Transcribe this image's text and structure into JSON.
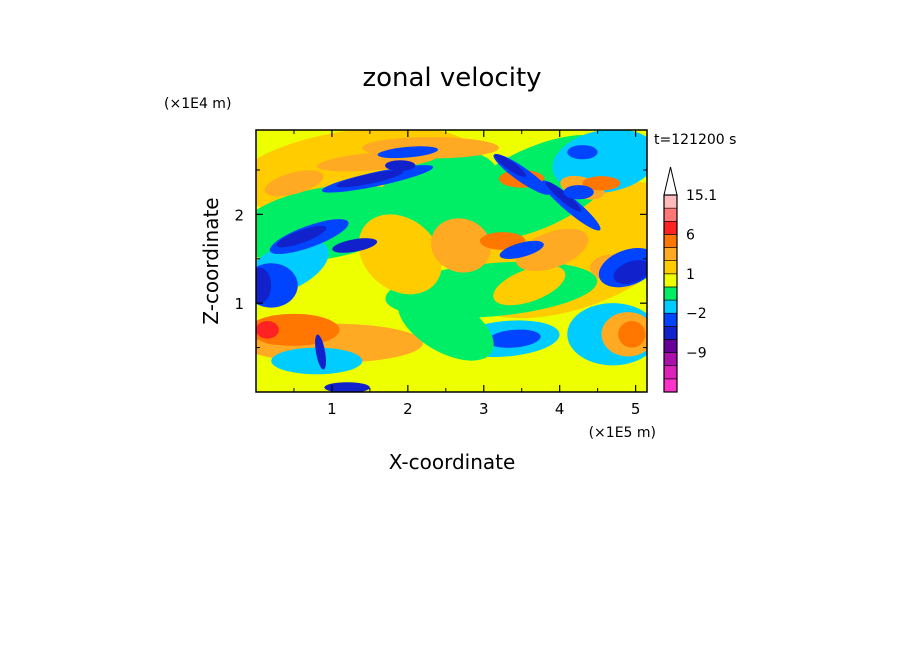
{
  "chart_data": {
    "type": "heatmap",
    "title": "zonal velocity",
    "xlabel": "X-coordinate",
    "ylabel": "Z-coordinate",
    "x_scale_label": "(×1E5 m)",
    "y_scale_label": "(×1E4 m)",
    "time_label": "t=121200 s",
    "xlim": [
      0,
      5.15
    ],
    "ylim": [
      0,
      2.95
    ],
    "x_ticks": [
      {
        "value": 1,
        "label": "1"
      },
      {
        "value": 2,
        "label": "2"
      },
      {
        "value": 3,
        "label": "3"
      },
      {
        "value": 4,
        "label": "4"
      },
      {
        "value": 5,
        "label": "5"
      }
    ],
    "y_ticks": [
      {
        "value": 1,
        "label": "1"
      },
      {
        "value": 2,
        "label": "2"
      }
    ],
    "colorbar": {
      "levels": [
        -15,
        -12,
        -9,
        -6,
        -4,
        -2,
        -1,
        0,
        1,
        2,
        4,
        6,
        9,
        12,
        15.1
      ],
      "colors": [
        "#ff33cc",
        "#dd22bb",
        "#aa11aa",
        "#660099",
        "#1122cc",
        "#0044ff",
        "#00ccff",
        "#00ee66",
        "#eeff00",
        "#ffcc00",
        "#ffaa22",
        "#ff7700",
        "#ff2222",
        "#ff7777",
        "#ffbbbb"
      ],
      "extend_color": "#ffffff",
      "labels": [
        {
          "value": 15.1,
          "text": "15.1"
        },
        {
          "value": 6,
          "text": "6"
        },
        {
          "value": 1,
          "text": "1"
        },
        {
          "value": -2,
          "text": "−2"
        },
        {
          "value": -9,
          "text": "−9"
        }
      ]
    }
  }
}
